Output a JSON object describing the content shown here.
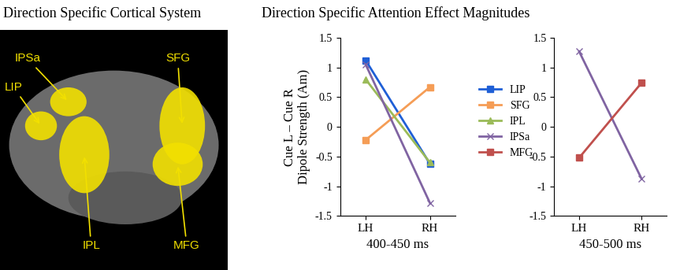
{
  "brain_panel": {
    "title": "Direction Specific Cortical System",
    "regions": [
      "IPSa",
      "LIP",
      "IPL",
      "SFG",
      "MFG"
    ]
  },
  "chart_heading": "Direction Specific Attention Effect Magnitudes",
  "chart_data": [
    {
      "type": "line",
      "categories": [
        "LH",
        "RH"
      ],
      "y_label": "Cue L – Cue R\nDipole Strength (Am)",
      "x_label": "400-450 ms",
      "ylim": [
        -1.5,
        1.5
      ],
      "yticks": [
        -1.5,
        -1,
        -0.5,
        0,
        0.5,
        1,
        1.5
      ],
      "legend": "right",
      "series": [
        {
          "name": "LIP",
          "color": "#1f5fd6",
          "marker": "square",
          "line_style": "solid",
          "values": [
            1.12,
            -0.62
          ]
        },
        {
          "name": "SFG",
          "color": "#f59d56",
          "marker": "square",
          "line_style": "solid",
          "values": [
            -0.22,
            0.67
          ]
        },
        {
          "name": "IPL",
          "color": "#9bbb59",
          "marker": "triangle",
          "line_style": "solid",
          "values": [
            0.8,
            -0.6
          ]
        },
        {
          "name": "IPSa",
          "color": "#8064a2",
          "marker": "x",
          "line_style": "solid",
          "values": [
            1.05,
            -1.28
          ]
        }
      ]
    },
    {
      "type": "line",
      "categories": [
        "LH",
        "RH"
      ],
      "x_label": "450-500 ms",
      "ylim": [
        -1.5,
        1.5
      ],
      "yticks": [
        -1.5,
        -1,
        -0.5,
        0,
        0.5,
        1,
        1.5
      ],
      "series": [
        {
          "name": "IPSa",
          "color": "#8064a2",
          "marker": "x",
          "line_style": "solid",
          "values": [
            1.27,
            -0.87
          ]
        },
        {
          "name": "MFG",
          "color": "#c0504d",
          "marker": "square",
          "line_style": "solid",
          "values": [
            -0.52,
            0.74
          ]
        }
      ]
    }
  ]
}
